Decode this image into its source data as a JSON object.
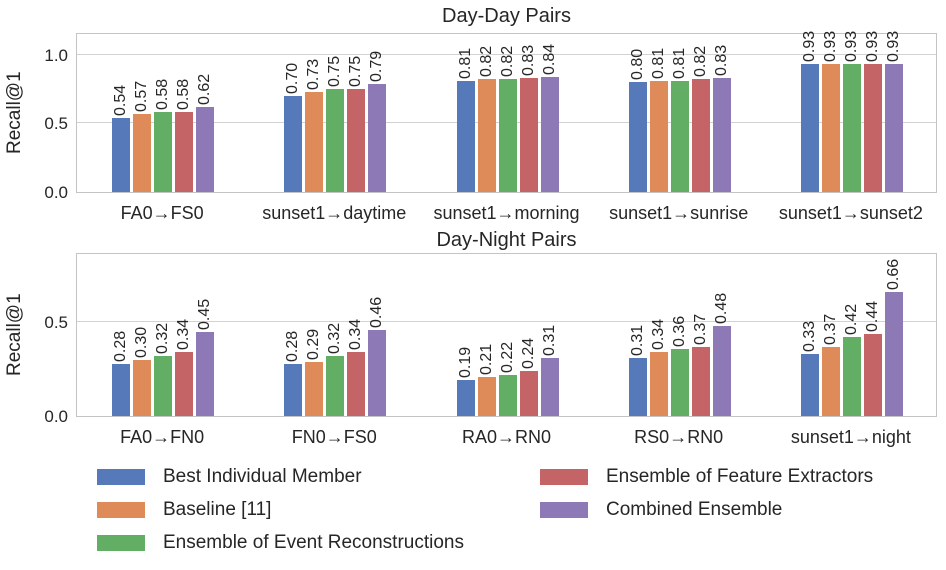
{
  "chart_data": [
    {
      "type": "bar",
      "title": "Day-Day Pairs",
      "ylabel": "Recall@1",
      "xlabel": "",
      "categories": [
        "FA0→FS0",
        "sunset1→daytime",
        "sunset1→morning",
        "sunset1→sunrise",
        "sunset1→sunset2"
      ],
      "series": [
        {
          "name": "Best Individual Member",
          "color": "#5679b9",
          "values": [
            0.54,
            0.7,
            0.81,
            0.8,
            0.93
          ]
        },
        {
          "name": "Baseline [11]",
          "color": "#df8b59",
          "values": [
            0.57,
            0.73,
            0.82,
            0.81,
            0.93
          ]
        },
        {
          "name": "Ensemble of Event Reconstructions",
          "color": "#61ae64",
          "values": [
            0.58,
            0.75,
            0.82,
            0.81,
            0.93
          ]
        },
        {
          "name": "Ensemble of Feature Extractors",
          "color": "#c56466",
          "values": [
            0.58,
            0.75,
            0.83,
            0.82,
            0.93
          ]
        },
        {
          "name": "Combined Ensemble",
          "color": "#8e79b7",
          "values": [
            0.62,
            0.79,
            0.84,
            0.83,
            0.93
          ]
        }
      ],
      "yticks": [
        0.0,
        0.5,
        1.0
      ],
      "ylim": [
        0,
        1.165
      ],
      "grid": true,
      "bar_value_labels": true,
      "value_label_rotation": 90
    },
    {
      "type": "bar",
      "title": "Day-Night Pairs",
      "ylabel": "Recall@1",
      "xlabel": "",
      "categories": [
        "FA0→FN0",
        "FN0→FS0",
        "RA0→RN0",
        "RS0→RN0",
        "sunset1→night"
      ],
      "series": [
        {
          "name": "Best Individual Member",
          "color": "#5679b9",
          "values": [
            0.28,
            0.28,
            0.19,
            0.31,
            0.33
          ]
        },
        {
          "name": "Baseline [11]",
          "color": "#df8b59",
          "values": [
            0.3,
            0.29,
            0.21,
            0.34,
            0.37
          ]
        },
        {
          "name": "Ensemble of Event Reconstructions",
          "color": "#61ae64",
          "values": [
            0.32,
            0.32,
            0.22,
            0.36,
            0.42
          ]
        },
        {
          "name": "Ensemble of Feature Extractors",
          "color": "#c56466",
          "values": [
            0.34,
            0.34,
            0.24,
            0.37,
            0.44
          ]
        },
        {
          "name": "Combined Ensemble",
          "color": "#8e79b7",
          "values": [
            0.45,
            0.46,
            0.31,
            0.48,
            0.66
          ]
        }
      ],
      "yticks": [
        0.0,
        0.5
      ],
      "ylim": [
        0,
        0.875
      ],
      "grid": true,
      "bar_value_labels": true,
      "value_label_rotation": 90
    }
  ],
  "legend": {
    "position": "below",
    "columns": 2,
    "items": [
      {
        "label": "Best Individual Member",
        "color": "#5679b9"
      },
      {
        "label": "Baseline [11]",
        "color": "#df8b59"
      },
      {
        "label": "Ensemble of Event Reconstructions",
        "color": "#61ae64"
      },
      {
        "label": "Ensemble of Feature Extractors",
        "color": "#c56466"
      },
      {
        "label": "Combined Ensemble",
        "color": "#8e79b7"
      }
    ]
  },
  "style": {
    "text_color": "#262626",
    "grid_color": "#d2d2d2",
    "spine_color": "#c4c4c4",
    "background": "#ffffff"
  }
}
